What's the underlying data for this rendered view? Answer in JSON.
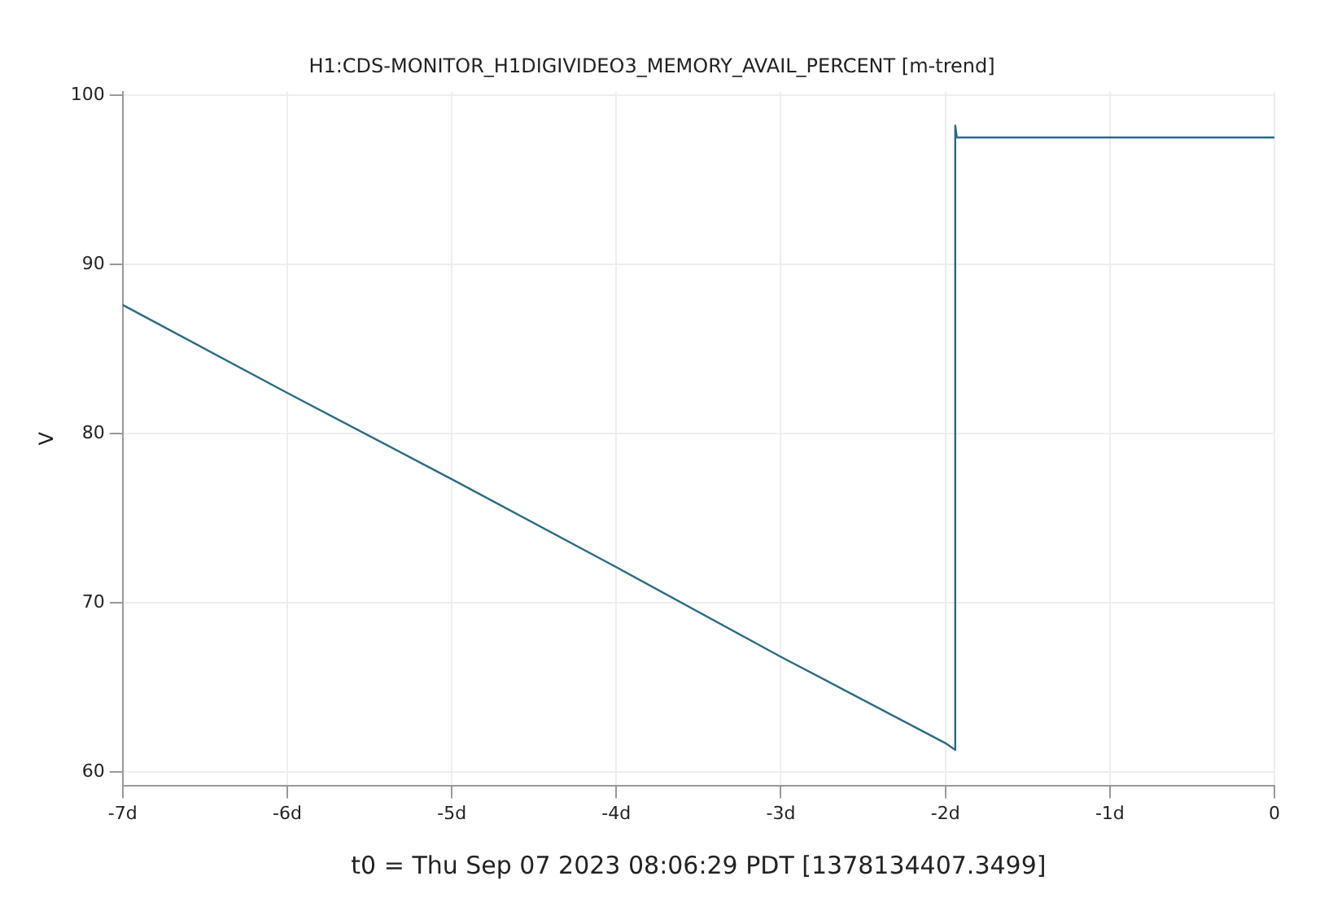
{
  "chart_data": {
    "type": "line",
    "title": "H1:CDS-MONITOR_H1DIGIVIDEO3_MEMORY_AVAIL_PERCENT [m-trend]",
    "xlabel": "t0 = Thu Sep 07 2023 08:06:29 PDT [1378134407.3499]",
    "ylabel": "V",
    "x": [
      -7,
      -6,
      -5,
      -4,
      -3,
      -2,
      -1.94,
      -1.94,
      -1.93,
      -1,
      0
    ],
    "series": [
      {
        "color": "#2b6a87",
        "values": [
          87.6,
          82.4,
          77.3,
          72.1,
          66.8,
          61.7,
          61.3,
          98.2,
          97.5,
          97.5,
          97.5
        ]
      }
    ],
    "xlim": [
      -7,
      0
    ],
    "ylim": [
      59.2,
      100.2
    ],
    "xticks": [
      {
        "value": -7,
        "label": "-7d"
      },
      {
        "value": -6,
        "label": "-6d"
      },
      {
        "value": -5,
        "label": "-5d"
      },
      {
        "value": -4,
        "label": "-4d"
      },
      {
        "value": -3,
        "label": "-3d"
      },
      {
        "value": -2,
        "label": "-2d"
      },
      {
        "value": -1,
        "label": "-1d"
      },
      0
    ],
    "yticks": [
      60,
      70,
      80,
      90,
      100
    ],
    "grid": true,
    "legend": false,
    "marker": "none",
    "line_style": "solid"
  }
}
